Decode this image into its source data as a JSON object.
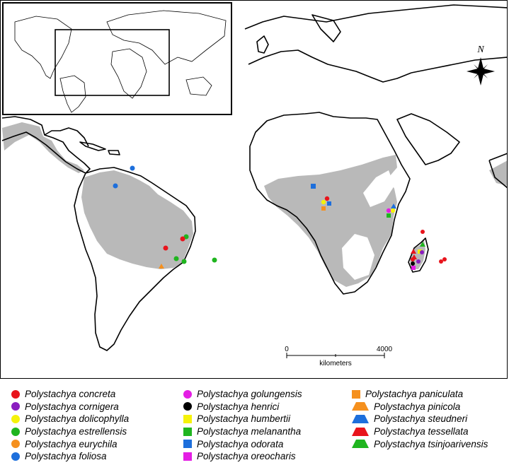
{
  "map": {
    "compass_letter": "N",
    "scale_bar": {
      "left_label": "0",
      "right_label": "4000",
      "unit_label": "kilometers"
    }
  },
  "colors": {
    "red": "#e8141c",
    "purple": "#8a1ec0",
    "yellow": "#f5f20a",
    "green": "#1fb51f",
    "orange": "#f5901e",
    "blue": "#1d6fdc",
    "magenta": "#e41ee4",
    "black": "#000000",
    "range_fill": "#b9b9b9"
  },
  "legend": {
    "columns": [
      [
        {
          "label": "Polystachya concreta",
          "shape": "circle",
          "color": "#e8141c"
        },
        {
          "label": "Polystachya cornigera",
          "shape": "circle",
          "color": "#8a1ec0"
        },
        {
          "label": "Polystachya dolicophylla",
          "shape": "circle",
          "color": "#f5f20a"
        },
        {
          "label": "Polystachya estrellensis",
          "shape": "circle",
          "color": "#1fb51f"
        },
        {
          "label": "Polystachya eurychila",
          "shape": "circle",
          "color": "#f5901e"
        },
        {
          "label": "Polystachya foliosa",
          "shape": "circle",
          "color": "#1d6fdc"
        }
      ],
      [
        {
          "label": "Polystachya golungensis",
          "shape": "circle",
          "color": "#e41ee4"
        },
        {
          "label": "Polystachya henrici",
          "shape": "circle",
          "color": "#000000"
        },
        {
          "label": "Polystachya humbertii",
          "shape": "square",
          "color": "#f5f20a"
        },
        {
          "label": "Polystachya melanantha",
          "shape": "square",
          "color": "#1fb51f"
        },
        {
          "label": "Polystachya odorata",
          "shape": "square",
          "color": "#1d6fdc"
        },
        {
          "label": "Polystachya oreocharis",
          "shape": "square",
          "color": "#e41ee4"
        }
      ],
      [
        {
          "label": "Polystachya paniculata",
          "shape": "square",
          "color": "#f5901e"
        },
        {
          "label": "Polystachya pinicola",
          "shape": "triangle",
          "color": "#f5901e"
        },
        {
          "label": "Polystachya steudneri",
          "shape": "triangle",
          "color": "#1d6fdc"
        },
        {
          "label": "Polystachya tessellata",
          "shape": "triangle",
          "color": "#e8141c"
        },
        {
          "label": "Polystachya tsinjoarivensis",
          "shape": "triangle",
          "color": "#1fb51f"
        }
      ]
    ]
  }
}
